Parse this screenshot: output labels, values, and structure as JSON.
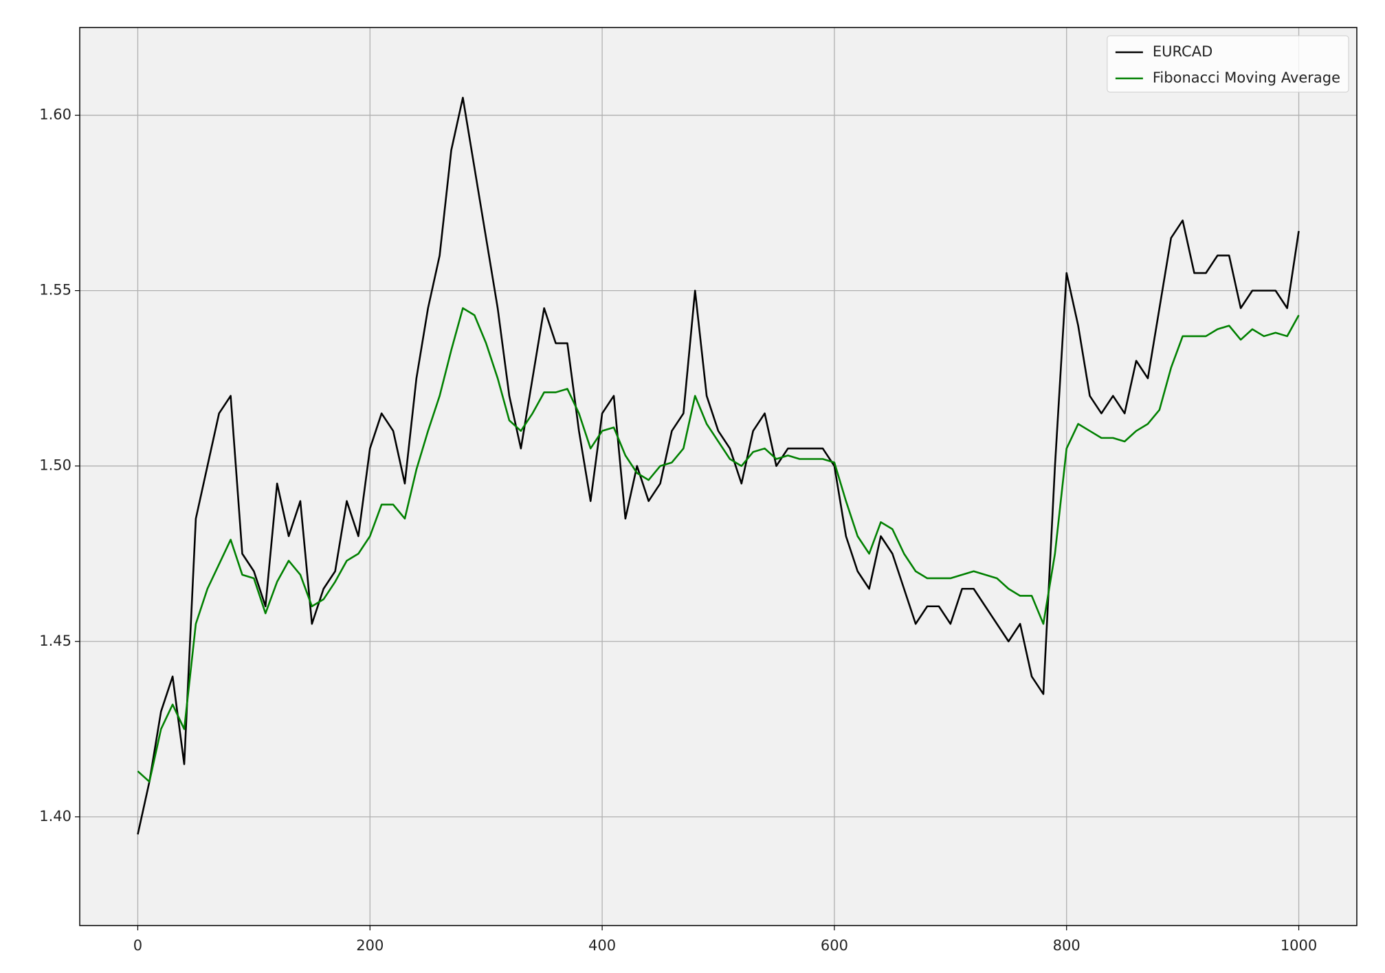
{
  "chart_data": {
    "type": "line",
    "x": [
      0,
      10,
      20,
      30,
      40,
      50,
      60,
      70,
      80,
      90,
      100,
      110,
      120,
      130,
      140,
      150,
      160,
      170,
      180,
      190,
      200,
      210,
      220,
      230,
      240,
      250,
      260,
      270,
      280,
      290,
      300,
      310,
      320,
      330,
      340,
      350,
      360,
      370,
      380,
      390,
      400,
      410,
      420,
      430,
      440,
      450,
      460,
      470,
      480,
      490,
      500,
      510,
      520,
      530,
      540,
      550,
      560,
      570,
      580,
      590,
      600,
      610,
      620,
      630,
      640,
      650,
      660,
      670,
      680,
      690,
      700,
      710,
      720,
      730,
      740,
      750,
      760,
      770,
      780,
      790,
      800,
      810,
      820,
      830,
      840,
      850,
      860,
      870,
      880,
      890,
      900,
      910,
      920,
      930,
      940,
      950,
      960,
      970,
      980,
      990,
      1000
    ],
    "series": [
      {
        "name": "EURCAD",
        "color": "#000000",
        "values": [
          1.395,
          1.41,
          1.43,
          1.44,
          1.415,
          1.485,
          1.5,
          1.515,
          1.52,
          1.475,
          1.47,
          1.46,
          1.495,
          1.48,
          1.49,
          1.455,
          1.465,
          1.47,
          1.49,
          1.48,
          1.505,
          1.515,
          1.51,
          1.495,
          1.525,
          1.545,
          1.56,
          1.59,
          1.605,
          1.585,
          1.565,
          1.545,
          1.52,
          1.505,
          1.525,
          1.545,
          1.535,
          1.535,
          1.51,
          1.49,
          1.515,
          1.52,
          1.485,
          1.5,
          1.49,
          1.495,
          1.51,
          1.515,
          1.55,
          1.52,
          1.51,
          1.505,
          1.495,
          1.51,
          1.515,
          1.5,
          1.505,
          1.505,
          1.505,
          1.505,
          1.5,
          1.48,
          1.47,
          1.465,
          1.48,
          1.475,
          1.465,
          1.455,
          1.46,
          1.46,
          1.455,
          1.465,
          1.465,
          1.46,
          1.455,
          1.45,
          1.455,
          1.44,
          1.435,
          1.5,
          1.555,
          1.54,
          1.52,
          1.515,
          1.52,
          1.515,
          1.53,
          1.525,
          1.545,
          1.565,
          1.57,
          1.555,
          1.555,
          1.56,
          1.56,
          1.545,
          1.55,
          1.55,
          1.55,
          1.545,
          1.567
        ]
      },
      {
        "name": "Fibonacci Moving Average",
        "color": "#008000",
        "values": [
          1.413,
          1.41,
          1.425,
          1.432,
          1.425,
          1.455,
          1.465,
          1.472,
          1.479,
          1.469,
          1.468,
          1.458,
          1.467,
          1.473,
          1.469,
          1.46,
          1.462,
          1.467,
          1.473,
          1.475,
          1.48,
          1.489,
          1.489,
          1.485,
          1.499,
          1.51,
          1.52,
          1.533,
          1.545,
          1.543,
          1.535,
          1.525,
          1.513,
          1.51,
          1.515,
          1.521,
          1.521,
          1.522,
          1.515,
          1.505,
          1.51,
          1.511,
          1.503,
          1.498,
          1.496,
          1.5,
          1.501,
          1.505,
          1.52,
          1.512,
          1.507,
          1.502,
          1.5,
          1.504,
          1.505,
          1.502,
          1.503,
          1.502,
          1.502,
          1.502,
          1.501,
          1.49,
          1.48,
          1.475,
          1.484,
          1.482,
          1.475,
          1.47,
          1.468,
          1.468,
          1.468,
          1.469,
          1.47,
          1.469,
          1.468,
          1.465,
          1.463,
          1.463,
          1.455,
          1.475,
          1.505,
          1.512,
          1.51,
          1.508,
          1.508,
          1.507,
          1.51,
          1.512,
          1.516,
          1.528,
          1.537,
          1.537,
          1.537,
          1.539,
          1.54,
          1.536,
          1.539,
          1.537,
          1.538,
          1.537,
          1.543
        ]
      }
    ],
    "xlim": [
      -50,
      1050
    ],
    "xticks": [
      0,
      200,
      400,
      600,
      800,
      1000
    ],
    "ylim": [
      1.369,
      1.625
    ],
    "yticks": [
      {
        "value": 1.4,
        "label": "1.40"
      },
      1.45,
      {
        "value": 1.5,
        "label": "1.50"
      },
      1.55,
      {
        "value": 1.6,
        "label": "1.60"
      }
    ],
    "grid": true,
    "legend": "upper right"
  }
}
